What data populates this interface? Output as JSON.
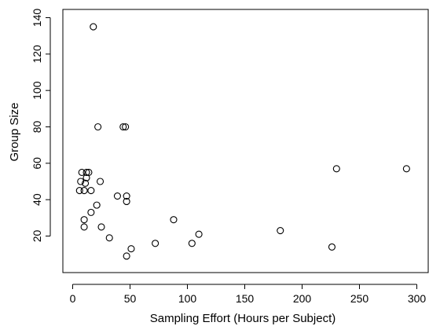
{
  "chart_data": {
    "type": "scatter",
    "title": "",
    "xlabel": "Sampling Effort (Hours per Subject)",
    "ylabel": "Group Size",
    "xlim": [
      0,
      300
    ],
    "ylim": [
      8,
      140
    ],
    "x_ticks": [
      0,
      50,
      100,
      150,
      200,
      250,
      300
    ],
    "y_ticks": [
      20,
      40,
      60,
      80,
      100,
      120,
      140
    ],
    "grid": false,
    "legend": "none",
    "series": [
      {
        "marker": "open-circle",
        "color": "#000000",
        "points": [
          [
            18,
            135
          ],
          [
            22,
            80
          ],
          [
            44,
            80
          ],
          [
            46,
            80
          ],
          [
            291,
            57
          ],
          [
            230,
            57
          ],
          [
            8,
            55
          ],
          [
            12,
            55
          ],
          [
            14,
            55
          ],
          [
            12,
            52
          ],
          [
            7,
            50
          ],
          [
            24,
            50
          ],
          [
            11,
            49
          ],
          [
            6,
            45
          ],
          [
            10,
            45
          ],
          [
            16,
            45
          ],
          [
            39,
            42
          ],
          [
            47,
            42
          ],
          [
            47,
            39
          ],
          [
            21,
            37
          ],
          [
            16,
            33
          ],
          [
            10,
            29
          ],
          [
            88,
            29
          ],
          [
            10,
            25
          ],
          [
            25,
            25
          ],
          [
            181,
            23
          ],
          [
            110,
            21
          ],
          [
            32,
            19
          ],
          [
            72,
            16
          ],
          [
            104,
            16
          ],
          [
            226,
            14
          ],
          [
            51,
            13
          ],
          [
            47,
            9
          ]
        ]
      }
    ]
  }
}
